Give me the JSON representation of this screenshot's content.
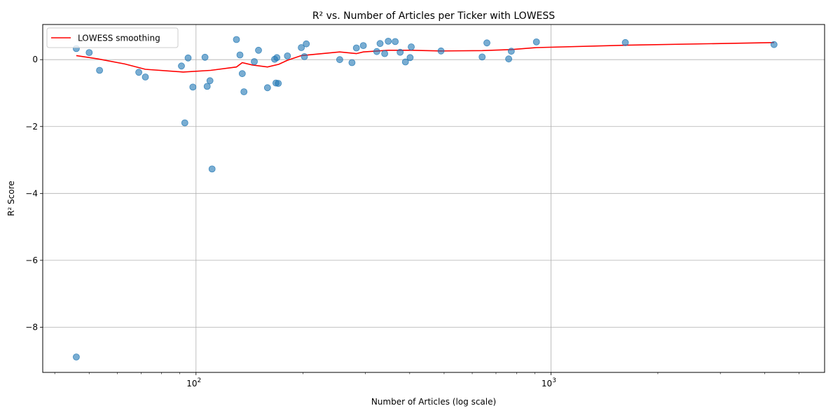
{
  "chart_data": {
    "type": "scatter",
    "title": "R² vs. Number of Articles per Ticker with LOWESS",
    "xlabel": "Number of Articles (log scale)",
    "ylabel": "R² Score",
    "xscale": "log",
    "xlim": [
      37,
      5900
    ],
    "ylim": [
      -9.35,
      1.05
    ],
    "grid": true,
    "legend": {
      "placement": "top-left",
      "entries": [
        "LOWESS smoothing"
      ]
    },
    "x_ticks": [
      {
        "value": 100,
        "base": "10",
        "exp": "2"
      },
      {
        "value": 1000,
        "base": "10",
        "exp": "3"
      }
    ],
    "y_ticks": [
      {
        "value": 0,
        "label": "0"
      },
      {
        "value": -2,
        "label": "−2"
      },
      {
        "value": -4,
        "label": "−4"
      },
      {
        "value": -6,
        "label": "−6"
      },
      {
        "value": -8,
        "label": "−8"
      }
    ],
    "colors": {
      "points": "#1f77b4",
      "lowess": "#ff0000",
      "grid": "#b0b0b0"
    },
    "series": [
      {
        "type": "scatter",
        "points": [
          [
            46,
            0.33
          ],
          [
            50,
            0.21
          ],
          [
            53.5,
            -0.32
          ],
          [
            69,
            -0.38
          ],
          [
            72,
            -0.52
          ],
          [
            91,
            -0.19
          ],
          [
            93,
            -1.89
          ],
          [
            95,
            0.05
          ],
          [
            98,
            -0.82
          ],
          [
            106,
            0.07
          ],
          [
            107.5,
            -0.8
          ],
          [
            109.5,
            -0.63
          ],
          [
            111,
            -3.27
          ],
          [
            130,
            0.6
          ],
          [
            133,
            0.14
          ],
          [
            135,
            -0.42
          ],
          [
            136.5,
            -0.96
          ],
          [
            146,
            -0.06
          ],
          [
            150,
            0.28
          ],
          [
            159,
            -0.84
          ],
          [
            166.5,
            0.01
          ],
          [
            168,
            -0.7
          ],
          [
            169,
            0.06
          ],
          [
            170.5,
            -0.71
          ],
          [
            181,
            0.11
          ],
          [
            198,
            0.36
          ],
          [
            202,
            0.09
          ],
          [
            204.5,
            0.47
          ],
          [
            254,
            0.0
          ],
          [
            275,
            -0.09
          ],
          [
            283,
            0.35
          ],
          [
            296,
            0.42
          ],
          [
            323,
            0.24
          ],
          [
            330,
            0.48
          ],
          [
            340,
            0.18
          ],
          [
            348,
            0.55
          ],
          [
            364,
            0.54
          ],
          [
            376,
            0.22
          ],
          [
            389,
            -0.07
          ],
          [
            401,
            0.06
          ],
          [
            404,
            0.38
          ],
          [
            490,
            0.26
          ],
          [
            640,
            0.08
          ],
          [
            660,
            0.5
          ],
          [
            760,
            0.02
          ],
          [
            773,
            0.25
          ],
          [
            910,
            0.53
          ],
          [
            1620,
            0.51
          ],
          [
            4250,
            0.45
          ],
          [
            46,
            -8.89
          ]
        ]
      },
      {
        "type": "line",
        "name": "LOWESS smoothing",
        "points": [
          [
            46,
            0.12
          ],
          [
            53,
            0.02
          ],
          [
            63,
            -0.13
          ],
          [
            72,
            -0.29
          ],
          [
            92,
            -0.37
          ],
          [
            110,
            -0.32
          ],
          [
            130,
            -0.22
          ],
          [
            135,
            -0.09
          ],
          [
            144,
            -0.16
          ],
          [
            159,
            -0.22
          ],
          [
            171,
            -0.14
          ],
          [
            181,
            -0.02
          ],
          [
            198,
            0.12
          ],
          [
            254,
            0.23
          ],
          [
            283,
            0.18
          ],
          [
            296,
            0.23
          ],
          [
            348,
            0.28
          ],
          [
            404,
            0.28
          ],
          [
            490,
            0.26
          ],
          [
            640,
            0.27
          ],
          [
            773,
            0.3
          ],
          [
            910,
            0.36
          ],
          [
            1620,
            0.43
          ],
          [
            4250,
            0.51
          ]
        ]
      }
    ]
  }
}
